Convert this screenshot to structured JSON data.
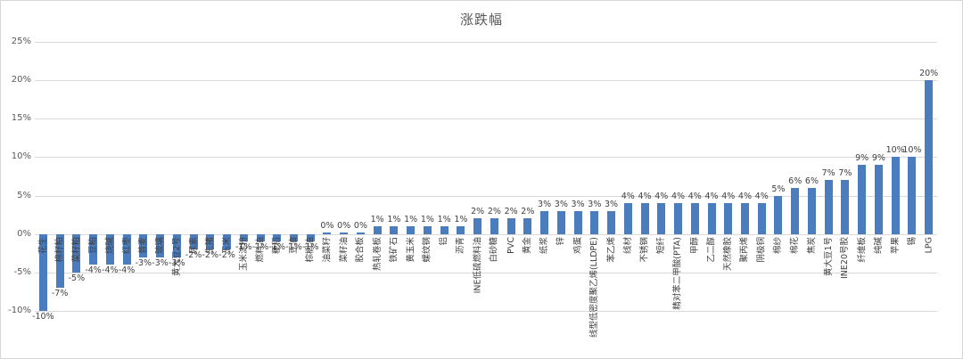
{
  "header": {
    "title": "涨跌幅"
  },
  "y_axis": {
    "tick_labels": [
      "25%",
      "20%",
      "15%",
      "10%",
      "5%",
      "0%",
      "-5%",
      "-10%"
    ],
    "tick_values": [
      25,
      20,
      15,
      10,
      5,
      0,
      -5,
      -10
    ],
    "max": 25,
    "min": -10,
    "step": 5
  },
  "style": {
    "bar_color": "#4a7cbe",
    "grid_color": "#d9d9d9",
    "label_color": "#404040",
    "axis_text_color": "#595959"
  },
  "chart_data": {
    "type": "bar",
    "title": "涨跌幅",
    "xlabel": "",
    "ylabel": "",
    "ylim": [
      -10,
      25
    ],
    "grid": true,
    "legend": false,
    "data_label_format": "percent",
    "categories": [
      "花生",
      "棉籽粕",
      "菜籽粕",
      "豆粕",
      "烧碱",
      "红枣",
      "普麦",
      "玻璃",
      "黄大豆2号",
      "尿素",
      "生猪",
      "玉米",
      "玉米淀粉",
      "燃料油",
      "粳稻",
      "豆油",
      "棕榈油",
      "油菜籽",
      "菜籽油",
      "胶合板",
      "热轧卷板",
      "铁矿石",
      "黄玉米",
      "螺纹钢",
      "铝",
      "沥青",
      "INE低硫燃料油",
      "白砂糖",
      "PVC",
      "黄金",
      "纸浆",
      "锌",
      "鸡蛋",
      "线型低密度聚乙烯(LLDPE)",
      "苯乙烯",
      "线材",
      "不锈钢",
      "短纤",
      "精对苯二甲酸(PTA)",
      "甲醇",
      "乙二醇",
      "天然橡胶",
      "聚丙烯",
      "阴极铜",
      "棉纱",
      "棉花",
      "焦炭",
      "黄大豆1号",
      "INE20号胶",
      "纤维板",
      "纯碱",
      "苹果",
      "锡",
      "LPG"
    ],
    "values": [
      -10,
      -7,
      -5,
      -4,
      -4,
      -4,
      -3,
      -3,
      -3,
      -2,
      -2,
      -2,
      -1,
      -1,
      -1,
      -1,
      -1,
      0,
      0,
      0,
      1,
      1,
      1,
      1,
      1,
      1,
      2,
      2,
      2,
      2,
      3,
      3,
      3,
      3,
      3,
      4,
      4,
      4,
      4,
      4,
      4,
      4,
      4,
      4,
      5,
      6,
      6,
      7,
      7,
      9,
      9,
      10,
      10,
      20
    ],
    "data_labels": [
      "-10%",
      "-7%",
      "-5%",
      "-4%",
      "-4%",
      "-4%",
      "-3%",
      "-3%",
      "-3%",
      "-2%",
      "-2%",
      "-2%",
      "-1%",
      "-1%",
      "-1%",
      "-1%",
      "-1%",
      "0%",
      "0%",
      "0%",
      "1%",
      "1%",
      "1%",
      "1%",
      "1%",
      "1%",
      "2%",
      "2%",
      "2%",
      "2%",
      "3%",
      "3%",
      "3%",
      "3%",
      "3%",
      "4%",
      "4%",
      "4%",
      "4%",
      "4%",
      "4%",
      "4%",
      "4%",
      "4%",
      "5%",
      "6%",
      "6%",
      "7%",
      "7%",
      "9%",
      "9%",
      "10%",
      "10%",
      "20%"
    ]
  }
}
